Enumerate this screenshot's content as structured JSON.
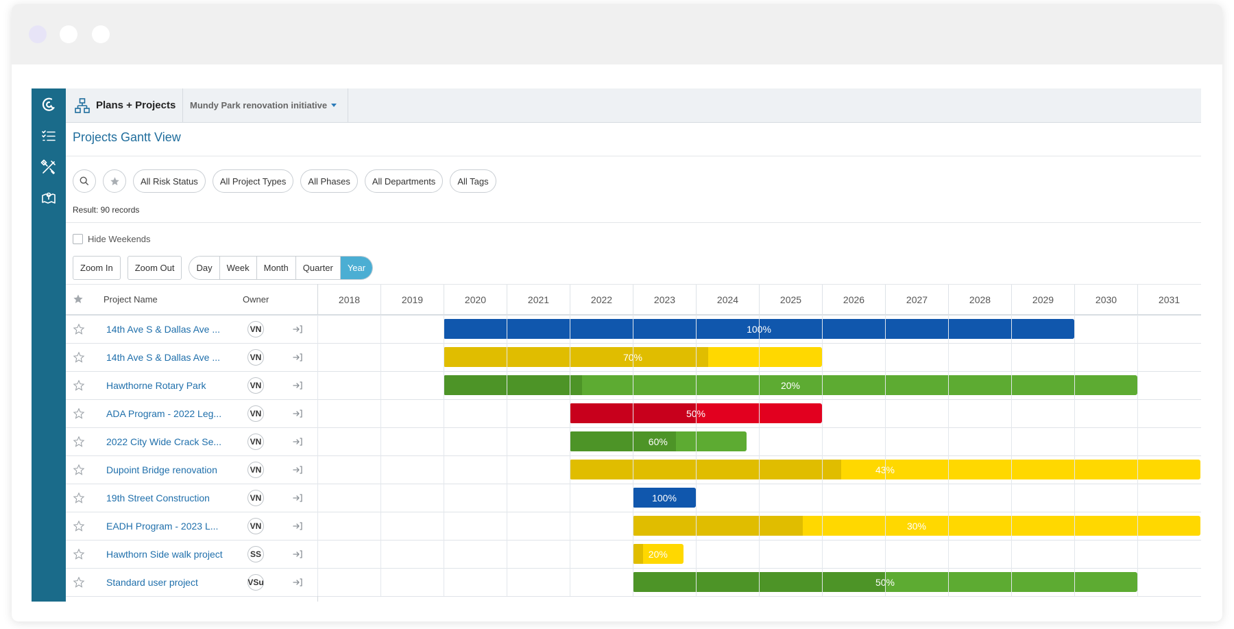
{
  "window": {
    "controls": [
      "window-dot-1",
      "window-dot-2",
      "window-dot-3"
    ]
  },
  "topbar": {
    "module_title": "Plans + Projects",
    "plan_selector": "Mundy Park renovation initiative"
  },
  "page": {
    "title": "Projects Gantt View",
    "result": "Result: 90 records"
  },
  "filters": [
    "All Risk Status",
    "All Project Types",
    "All Phases",
    "All Departments",
    "All Tags"
  ],
  "options": {
    "hide_weekends": "Hide Weekends",
    "hide_weekends_checked": false
  },
  "zoom": {
    "zoom_in": "Zoom In",
    "zoom_out": "Zoom Out",
    "scales": [
      "Day",
      "Week",
      "Month",
      "Quarter",
      "Year"
    ],
    "active_scale": "Year"
  },
  "columns": {
    "name": "Project Name",
    "owner": "Owner"
  },
  "years": [
    "2018",
    "2019",
    "2020",
    "2021",
    "2022",
    "2023",
    "2024",
    "2025",
    "2026",
    "2027",
    "2028",
    "2029",
    "2030",
    "2031"
  ],
  "colors": {
    "blue": "#1057ad",
    "yellow": "#ffd800",
    "yellow_progress": "#e0bd00",
    "green": "#5dab32",
    "green_progress": "#4d9427",
    "red": "#e2001f",
    "red_progress": "#c8001c",
    "accent": "#1f6d9c",
    "sidebar": "#1a6b8a"
  },
  "projects": [
    {
      "name": "14th Ave S & Dallas Ave ...",
      "owner": "VN",
      "start": 2020.0,
      "end": 2030.0,
      "progress": 1.0,
      "label": "100%",
      "color": "blue"
    },
    {
      "name": "14th Ave S & Dallas Ave ...",
      "owner": "VN",
      "start": 2020.0,
      "end": 2026.0,
      "progress": 0.7,
      "label": "70%",
      "color": "yellow"
    },
    {
      "name": "Hawthorne Rotary Park",
      "owner": "VN",
      "start": 2020.0,
      "end": 2031.0,
      "progress": 0.2,
      "label": "20%",
      "color": "green"
    },
    {
      "name": "ADA Program - 2022 Leg...",
      "owner": "VN",
      "start": 2022.0,
      "end": 2026.0,
      "progress": 0.5,
      "label": "50%",
      "color": "red"
    },
    {
      "name": "2022 City Wide Crack Se...",
      "owner": "VN",
      "start": 2022.0,
      "end": 2024.8,
      "progress": 0.6,
      "label": "60%",
      "color": "green"
    },
    {
      "name": "Dupoint Bridge renovation",
      "owner": "VN",
      "start": 2022.0,
      "end": 2032.0,
      "progress": 0.43,
      "label": "43%",
      "color": "yellow"
    },
    {
      "name": "19th Street Construction",
      "owner": "VN",
      "start": 2023.0,
      "end": 2024.0,
      "progress": 1.0,
      "label": "100%",
      "color": "blue"
    },
    {
      "name": "EADH Program - 2023 L...",
      "owner": "VN",
      "start": 2023.0,
      "end": 2032.0,
      "progress": 0.3,
      "label": "30%",
      "color": "yellow"
    },
    {
      "name": "Hawthorn Side walk project",
      "owner": "SS",
      "start": 2023.0,
      "end": 2023.8,
      "progress": 0.2,
      "label": "20%",
      "color": "yellow"
    },
    {
      "name": "Standard user project",
      "owner": "VSu",
      "start": 2023.0,
      "end": 2031.0,
      "progress": 0.5,
      "label": "50%",
      "color": "green"
    }
  ]
}
